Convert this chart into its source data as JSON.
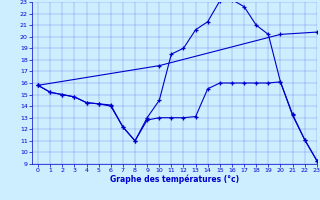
{
  "bg_color": "#cceeff",
  "line_color": "#0000cc",
  "line1_x": [
    0,
    1,
    2,
    3,
    4,
    5,
    6,
    7,
    8,
    9,
    10,
    11,
    12,
    13,
    14,
    15,
    16,
    17,
    18,
    19,
    20,
    21,
    22,
    23
  ],
  "line1_y": [
    15.8,
    15.2,
    15.0,
    14.8,
    14.3,
    14.2,
    14.1,
    12.2,
    11.0,
    13.0,
    14.5,
    18.5,
    19.0,
    20.6,
    21.3,
    23.1,
    23.2,
    22.6,
    21.0,
    20.2,
    16.1,
    13.2,
    11.1,
    9.3
  ],
  "line2_x": [
    0,
    10,
    20,
    23
  ],
  "line2_y": [
    15.8,
    17.5,
    20.2,
    20.4
  ],
  "line3_x": [
    0,
    1,
    2,
    3,
    4,
    5,
    6,
    7,
    8,
    9,
    10,
    11,
    12,
    13,
    14,
    15,
    16,
    17,
    18,
    19,
    20,
    21,
    22,
    23
  ],
  "line3_y": [
    15.8,
    15.2,
    15.0,
    14.8,
    14.3,
    14.2,
    14.0,
    12.2,
    11.0,
    12.8,
    13.0,
    13.0,
    13.0,
    13.1,
    15.5,
    16.0,
    16.0,
    16.0,
    16.0,
    16.0,
    16.1,
    13.3,
    11.1,
    9.3
  ],
  "xlabel": "Graphe des températures (°c)",
  "ylim": [
    9,
    23
  ],
  "xlim": [
    -0.5,
    23
  ],
  "yticks": [
    9,
    10,
    11,
    12,
    13,
    14,
    15,
    16,
    17,
    18,
    19,
    20,
    21,
    22,
    23
  ],
  "xticks": [
    0,
    1,
    2,
    3,
    4,
    5,
    6,
    7,
    8,
    9,
    10,
    11,
    12,
    13,
    14,
    15,
    16,
    17,
    18,
    19,
    20,
    21,
    22,
    23
  ]
}
